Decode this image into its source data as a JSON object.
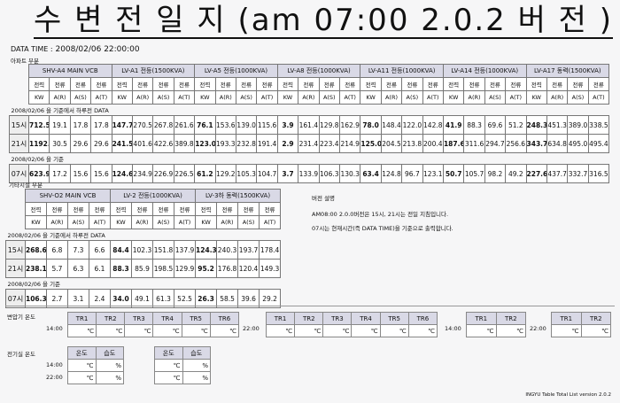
{
  "title": "수 변 전 일 지 (am 07:00 2.0.2 버 전 )",
  "data_time_label": "DATA TIME :",
  "data_time_value": "2008/02/06 22:00:00",
  "apt_section": "아파트 부분",
  "apt_table": {
    "groups": [
      "SHV-A4 MAIN VCB",
      "LV-A1 전등(1500KVA)",
      "LV-A5 전등(1000KVA)",
      "LV-A8 전등(1000KVA)",
      "LV-A11 전등(1000KVA)",
      "LV-A14 전등(1000KVA)",
      "LV-A17 동력(1500KVA)"
    ],
    "sub1": [
      "전력",
      "전류",
      "전류",
      "전류"
    ],
    "sub2": [
      "KW",
      "A(R)",
      "A(S)",
      "A(T)"
    ],
    "note1": "2008/02/06 을 기준에서 하루전 DATA",
    "note2": "2008/02/06 을 기준",
    "rows": [
      {
        "label": "15시",
        "values": [
          "712.5",
          "19.1",
          "17.8",
          "17.8",
          "147.7",
          "270.5",
          "267.8",
          "261.6",
          "76.1",
          "153.6",
          "139.0",
          "115.6",
          "3.9",
          "161.4",
          "129.8",
          "162.9",
          "78.0",
          "148.4",
          "122.0",
          "142.8",
          "41.9",
          "88.3",
          "69.6",
          "51.2",
          "248.3",
          "451.3",
          "389.0",
          "338.5"
        ]
      },
      {
        "label": "21시",
        "values": [
          "1192.7",
          "30.5",
          "29.6",
          "29.6",
          "241.5",
          "401.6",
          "422.6",
          "389.8",
          "123.0",
          "193.3",
          "232.8",
          "191.4",
          "2.9",
          "231.4",
          "223.4",
          "214.9",
          "125.0",
          "204.5",
          "213.8",
          "200.4",
          "187.6",
          "311.6",
          "294.7",
          "256.6",
          "343.7",
          "634.8",
          "495.0",
          "495.4"
        ]
      },
      {
        "label": "07시",
        "values": [
          "623.9",
          "17.2",
          "15.6",
          "15.6",
          "124.6",
          "234.9",
          "226.9",
          "226.5",
          "61.2",
          "129.2",
          "105.3",
          "104.7",
          "3.7",
          "133.9",
          "106.3",
          "130.3",
          "63.4",
          "124.8",
          "96.7",
          "123.1",
          "50.7",
          "105.7",
          "98.2",
          "49.2",
          "227.6",
          "437.7",
          "332.7",
          "316.5"
        ]
      }
    ]
  },
  "other_section": "기타시설 부분",
  "other_table": {
    "groups": [
      "SHV-O2 MAIN VCB",
      "LV-2 전등(1000KVA)",
      "LV-3하 동력(1500KVA)"
    ],
    "rows": [
      {
        "label": "15시",
        "values": [
          "268.6",
          "6.8",
          "7.3",
          "6.6",
          "84.4",
          "102.3",
          "151.8",
          "137.9",
          "124.3",
          "240.3",
          "193.7",
          "178.4"
        ]
      },
      {
        "label": "21시",
        "values": [
          "238.1",
          "5.7",
          "6.3",
          "6.1",
          "88.3",
          "85.9",
          "198.5",
          "129.9",
          "95.2",
          "176.8",
          "120.4",
          "149.3"
        ]
      },
      {
        "label": "07시",
        "values": [
          "106.3",
          "2.7",
          "3.1",
          "2.4",
          "34.0",
          "49.1",
          "61.3",
          "52.5",
          "26.3",
          "58.5",
          "39.6",
          "29.2"
        ]
      }
    ]
  },
  "version_info": {
    "title": "버전 설명",
    "line1": "AM08:00 2.0.0버전은 15시, 21시는 전일 지침입니다.",
    "line2": "07시는 현재시간(즉 DATA TIME)을 기준으로 출력합니다."
  },
  "transformer": {
    "label": "변압기 온도",
    "time1": "14:00",
    "time2": "22:00",
    "time3": "14:00",
    "time4": "22:00",
    "cols6": [
      "TR1",
      "TR2",
      "TR3",
      "TR4",
      "TR5",
      "TR6"
    ],
    "cols2": [
      "TR1",
      "TR2"
    ],
    "unit": "℃"
  },
  "elec_room": {
    "label": "전기실 온도",
    "time1": "14:00",
    "time2": "22:00",
    "cols": [
      "온도",
      "습도"
    ],
    "unit_t": "℃",
    "unit_h": "%"
  },
  "footer": "INGYU Table Total List version 2.0.2"
}
